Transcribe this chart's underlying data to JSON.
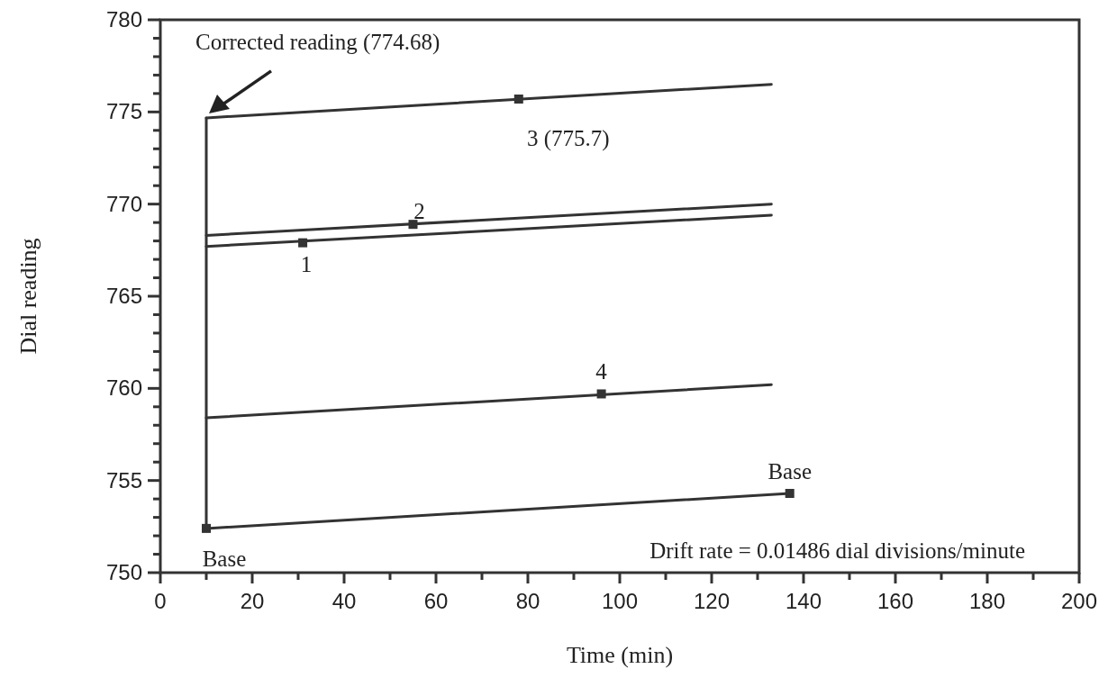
{
  "chart_data": {
    "type": "line",
    "xlabel": "Time (min)",
    "ylabel": "Dial reading",
    "xlim": [
      0,
      200
    ],
    "ylim": [
      750,
      780
    ],
    "xticks": [
      0,
      {
        "value": 10,
        "label": null
      },
      20,
      {
        "value": 30,
        "label": null
      },
      40,
      {
        "value": 50,
        "label": null
      },
      60,
      {
        "value": 70,
        "label": null
      },
      80,
      {
        "value": 90,
        "label": null
      },
      100,
      {
        "value": 110,
        "label": null
      },
      120,
      {
        "value": 130,
        "label": null
      },
      140,
      {
        "value": 150,
        "label": null
      },
      160,
      {
        "value": 170,
        "label": null
      },
      180,
      {
        "value": 190,
        "label": null
      },
      200
    ],
    "yticks": [
      750,
      {
        "value": 751,
        "label": null
      },
      {
        "value": 752,
        "label": null
      },
      {
        "value": 753,
        "label": null
      },
      {
        "value": 754,
        "label": null
      },
      755,
      {
        "value": 756,
        "label": null
      },
      {
        "value": 757,
        "label": null
      },
      {
        "value": 758,
        "label": null
      },
      {
        "value": 759,
        "label": null
      },
      760,
      {
        "value": 761,
        "label": null
      },
      {
        "value": 762,
        "label": null
      },
      {
        "value": 763,
        "label": null
      },
      {
        "value": 764,
        "label": null
      },
      765,
      {
        "value": 766,
        "label": null
      },
      {
        "value": 767,
        "label": null
      },
      {
        "value": 768,
        "label": null
      },
      {
        "value": 769,
        "label": null
      },
      770,
      {
        "value": 771,
        "label": null
      },
      {
        "value": 772,
        "label": null
      },
      {
        "value": 773,
        "label": null
      },
      {
        "value": 774,
        "label": null
      },
      775,
      {
        "value": 776,
        "label": null
      },
      {
        "value": 777,
        "label": null
      },
      {
        "value": 778,
        "label": null
      },
      {
        "value": 779,
        "label": null
      },
      780
    ],
    "series": [
      {
        "color": "#333333",
        "x": [
          10,
          133
        ],
        "values": [
          774.68,
          776.5
        ]
      },
      {
        "color": "#333333",
        "x": [
          10,
          133
        ],
        "values": [
          768.3,
          770.0
        ]
      },
      {
        "color": "#333333",
        "x": [
          10,
          133
        ],
        "values": [
          767.7,
          769.4
        ]
      },
      {
        "color": "#333333",
        "x": [
          10,
          133
        ],
        "values": [
          758.4,
          760.2
        ]
      },
      {
        "color": "#333333",
        "x": [
          10,
          10,
          137
        ],
        "values": [
          774.68,
          752.4,
          754.3
        ]
      },
      {
        "type": "scatter",
        "color": "#333333",
        "marker": "square",
        "x": [
          10,
          31,
          55,
          78,
          96,
          137
        ],
        "values": [
          752.4,
          767.9,
          768.9,
          775.7,
          759.7,
          754.3
        ]
      }
    ],
    "annotations": [
      {
        "text": "Corrected reading (774.68)",
        "x": 10,
        "y": 774.68
      },
      {
        "text": "1",
        "x": 31,
        "y": 767.9
      },
      {
        "text": "2",
        "x": 55,
        "y": 768.9
      },
      {
        "text": "3 (775.7)",
        "x": 78,
        "y": 775.7
      },
      {
        "text": "4",
        "x": 96,
        "y": 759.7
      },
      {
        "text": "Base",
        "x": 137,
        "y": 754.3
      },
      {
        "text": "Base",
        "x": 10,
        "y": 752.4
      },
      "Drift rate = 0.01486 dial divisions/minute"
    ]
  }
}
